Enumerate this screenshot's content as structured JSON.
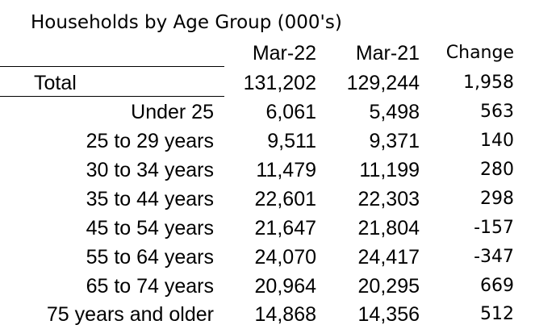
{
  "title": "Households by Age Group (000's)",
  "columns": {
    "mar22": "Mar-22",
    "mar21": "Mar-21",
    "change": "Change"
  },
  "rows": [
    {
      "label": "Total",
      "mar22": "131,202",
      "mar21": "129,244",
      "change": "1,958"
    },
    {
      "label": "Under 25",
      "mar22": "6,061",
      "mar21": "5,498",
      "change": "563"
    },
    {
      "label": "25 to 29 years",
      "mar22": "9,511",
      "mar21": "9,371",
      "change": "140"
    },
    {
      "label": "30 to 34 years",
      "mar22": "11,479",
      "mar21": "11,199",
      "change": "280"
    },
    {
      "label": "35 to 44 years",
      "mar22": "22,601",
      "mar21": "22,303",
      "change": "298"
    },
    {
      "label": "45 to 54 years",
      "mar22": "21,647",
      "mar21": "21,804",
      "change": "-157"
    },
    {
      "label": "55 to 64 years",
      "mar22": "24,070",
      "mar21": "24,417",
      "change": "-347"
    },
    {
      "label": "65 to 74 years",
      "mar22": "20,964",
      "mar21": "20,295",
      "change": "669"
    },
    {
      "label": "75 years and older",
      "mar22": "14,868",
      "mar21": "14,356",
      "change": "512"
    }
  ]
}
